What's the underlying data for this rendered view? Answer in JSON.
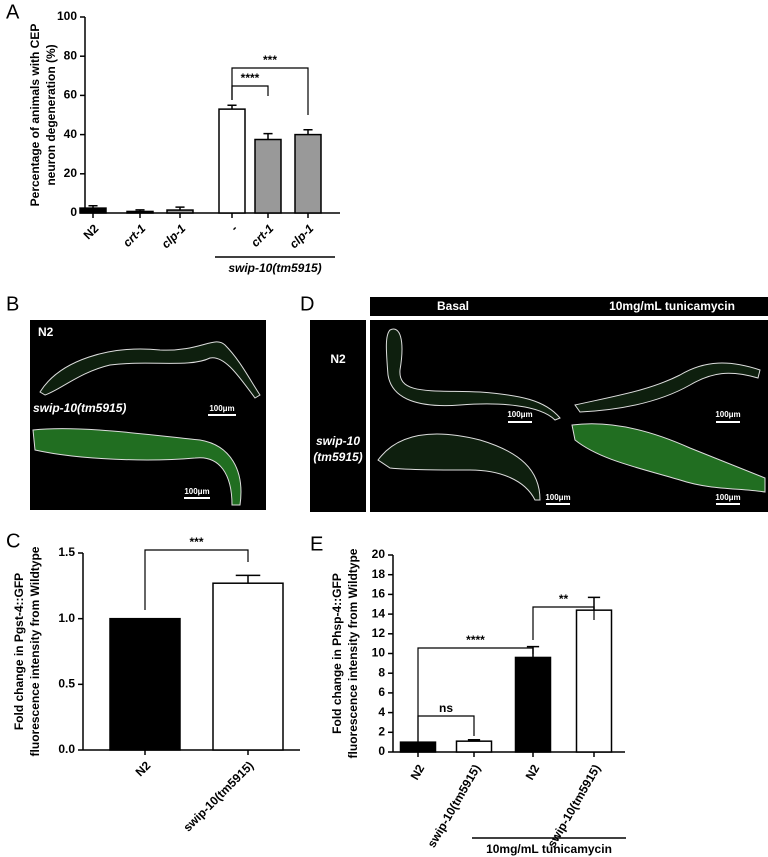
{
  "panel_labels": [
    "A",
    "B",
    "C",
    "D",
    "E"
  ],
  "chart_data": [
    {
      "type": "bar",
      "ylabel": [
        "Percentage of animals with CEP",
        "neuron degeneration (%)"
      ],
      "categories": [
        "N2",
        "crt-1",
        "clp-1",
        "-",
        "crt-1",
        "clp-1"
      ],
      "values": [
        2.5,
        0.8,
        1.5,
        53,
        37.5,
        40
      ],
      "errors": [
        1.2,
        0.8,
        1.5,
        2,
        3,
        2.5
      ],
      "colors": [
        "#000000",
        "#000000",
        "#999999",
        "#ffffff",
        "#999999",
        "#999999"
      ],
      "ylim": [
        0,
        100
      ],
      "yticks": [
        0,
        20,
        40,
        60,
        80,
        100
      ],
      "group_label": "swip-10(tm5915)",
      "annotations": [
        "****",
        "***"
      ]
    },
    {
      "type": "bar",
      "ylabel": [
        "Fold change in Pgst-4::GFP",
        "fluorescence intensity from Wildtype"
      ],
      "categories": [
        "N2",
        "swip-10(tm5915)"
      ],
      "values": [
        1.0,
        1.27
      ],
      "errors": [
        0,
        0.06
      ],
      "colors": [
        "#000000",
        "#ffffff"
      ],
      "ylim": [
        0,
        1.5
      ],
      "yticks": [
        {
          "value": 0,
          "label": "0.0"
        },
        {
          "value": 0.5,
          "label": "0.5"
        },
        {
          "value": 1,
          "label": "1.0"
        },
        {
          "value": 1.5,
          "label": "1.5"
        }
      ],
      "annotations": [
        "***"
      ]
    },
    {
      "type": "bar",
      "ylabel": [
        "Fold change in Phsp-4::GFP",
        "fluorescence intensity from Wildtype"
      ],
      "categories": [
        "N2",
        "swip-10(tm5915)",
        "N2",
        "swip-10(tm5915)"
      ],
      "values": [
        1,
        1.1,
        9.6,
        14.4
      ],
      "errors": [
        0,
        0.15,
        1.1,
        1.3
      ],
      "colors": [
        "#000000",
        "#ffffff",
        "#000000",
        "#ffffff"
      ],
      "ylim": [
        0,
        20
      ],
      "yticks": [
        0,
        2,
        4,
        6,
        8,
        10,
        12,
        14,
        16,
        18,
        20
      ],
      "group_label": "10mg/mL tunicamycin",
      "annotations": [
        "ns",
        "****",
        "**"
      ]
    }
  ],
  "image_b": {
    "labels": [
      "N2",
      "swip-10(tm5915)"
    ],
    "scale_bars": [
      "100μm",
      "100μm"
    ]
  },
  "image_d": {
    "columns": [
      "Basal",
      "10mg/mL tunicamycin"
    ],
    "rows": [
      [
        "N2"
      ],
      [
        "swip-10",
        "(tm5915)"
      ]
    ],
    "scale_bars": [
      "100μm",
      "100μm",
      "100μm",
      "100μm"
    ]
  }
}
